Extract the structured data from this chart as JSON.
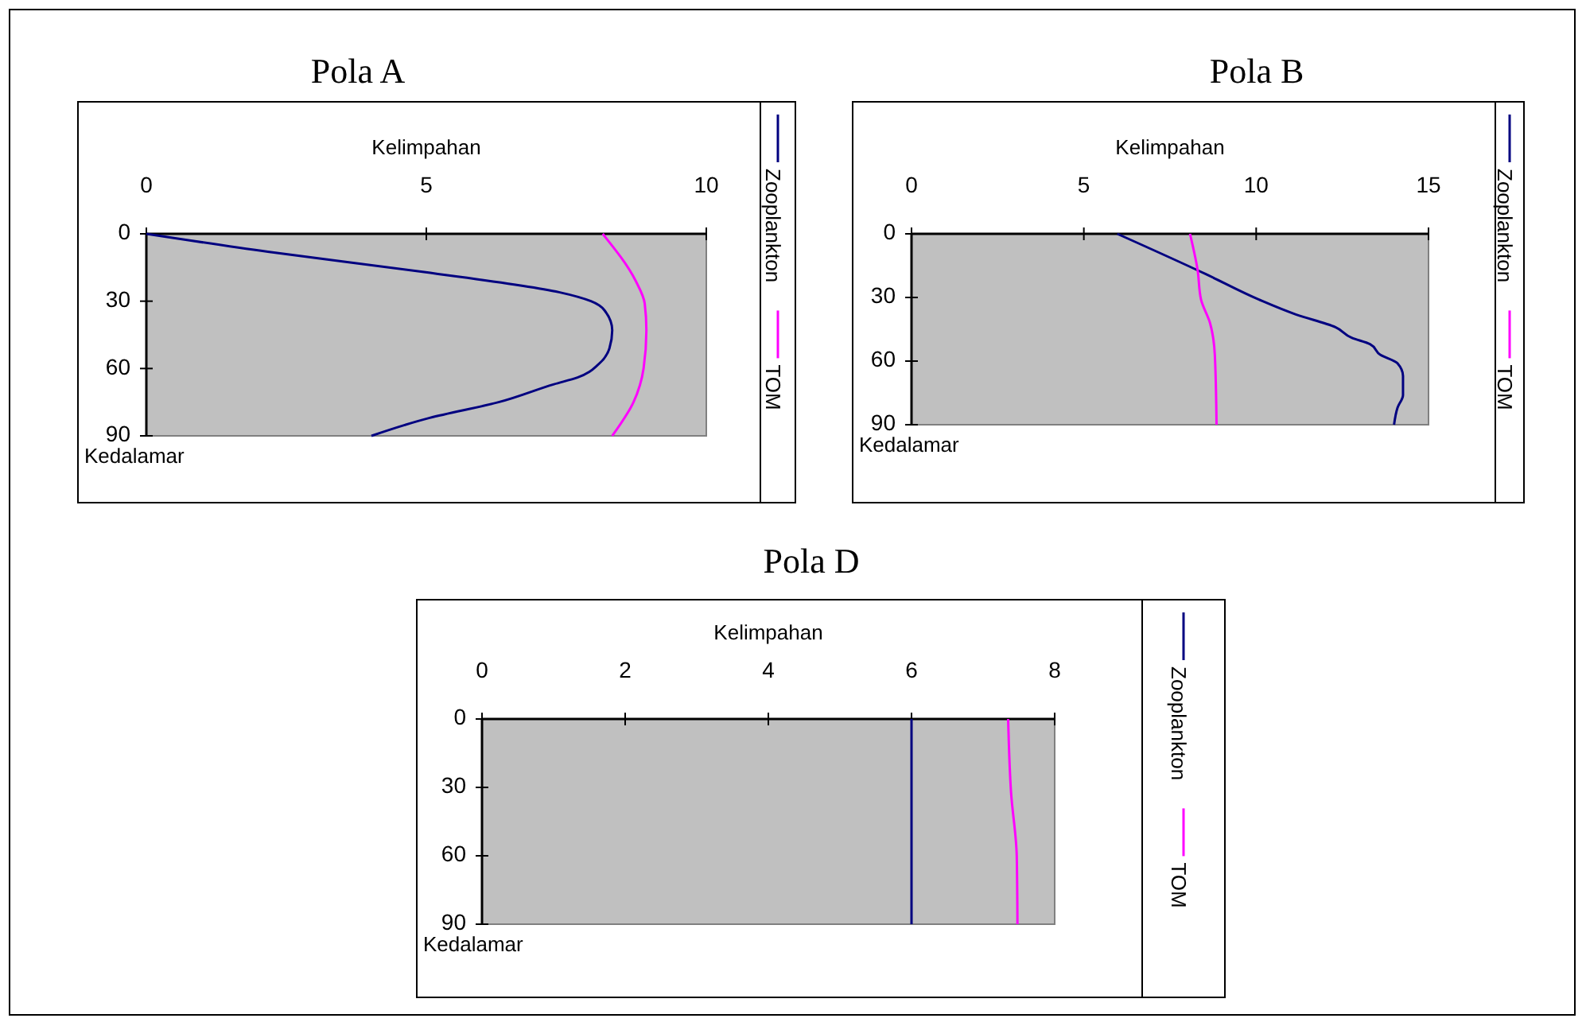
{
  "chart_data": [
    {
      "type": "line",
      "title": "Pola A",
      "xlabel": "Kelimpahan",
      "ylabel": "Kedalamar",
      "xlim": [
        0,
        10
      ],
      "xticks": [
        0,
        5,
        10
      ],
      "ylim": [
        90,
        0
      ],
      "yticks": [
        0,
        30,
        60,
        90
      ],
      "legend": "right",
      "series": [
        {
          "name": "Zooplankton",
          "color": "#000080",
          "x": [
            0,
            2.17,
            4.96,
            7.37,
            7.94,
            8.18,
            8.32,
            8.27,
            8.08,
            7.7,
            7.28,
            6.29,
            5.06,
            4.02
          ],
          "values": [
            0,
            8,
            17,
            26,
            30,
            34,
            43,
            51,
            58,
            64,
            67,
            75,
            82,
            90
          ]
        },
        {
          "name": "TOM",
          "color": "#ff00ff",
          "x": [
            8.15,
            8.74,
            8.9,
            8.93,
            8.88,
            8.7,
            8.32
          ],
          "values": [
            0,
            21,
            31,
            43,
            60,
            75,
            90
          ]
        }
      ]
    },
    {
      "type": "line",
      "title": "Pola B",
      "xlabel": "Kelimpahan",
      "ylabel": "Kedalamar",
      "xlim": [
        0,
        15
      ],
      "xticks": [
        0,
        5,
        10,
        15
      ],
      "ylim": [
        90,
        0
      ],
      "yticks": [
        0,
        30,
        60,
        90
      ],
      "legend": "right",
      "series": [
        {
          "name": "Zooplankton",
          "color": "#000080",
          "x": [
            5.97,
            8.54,
            10.08,
            11.15,
            12.3,
            12.77,
            13.3,
            13.6,
            14.1,
            14.26,
            14.26,
            14.1,
            14.0
          ],
          "values": [
            0,
            19,
            31,
            38,
            44,
            49,
            52,
            57,
            61,
            67,
            76,
            82,
            90
          ]
        },
        {
          "name": "TOM",
          "color": "#ff00ff",
          "x": [
            8.08,
            8.3,
            8.4,
            8.66,
            8.8,
            8.85
          ],
          "values": [
            0,
            17,
            31,
            42,
            57,
            90
          ]
        }
      ]
    },
    {
      "type": "line",
      "title": "Pola D",
      "xlabel": "Kelimpahan",
      "ylabel": "Kedalamar",
      "xlim": [
        0,
        8
      ],
      "xticks": [
        0,
        2,
        4,
        6,
        8
      ],
      "ylim": [
        90,
        0
      ],
      "yticks": [
        0,
        30,
        60,
        90
      ],
      "legend": "right",
      "series": [
        {
          "name": "Zooplankton",
          "color": "#000080",
          "x": [
            6,
            6
          ],
          "values": [
            0,
            90
          ]
        },
        {
          "name": "TOM",
          "color": "#ff00ff",
          "x": [
            7.35,
            7.39,
            7.47,
            7.48
          ],
          "values": [
            0,
            32,
            60,
            90
          ]
        }
      ]
    }
  ]
}
